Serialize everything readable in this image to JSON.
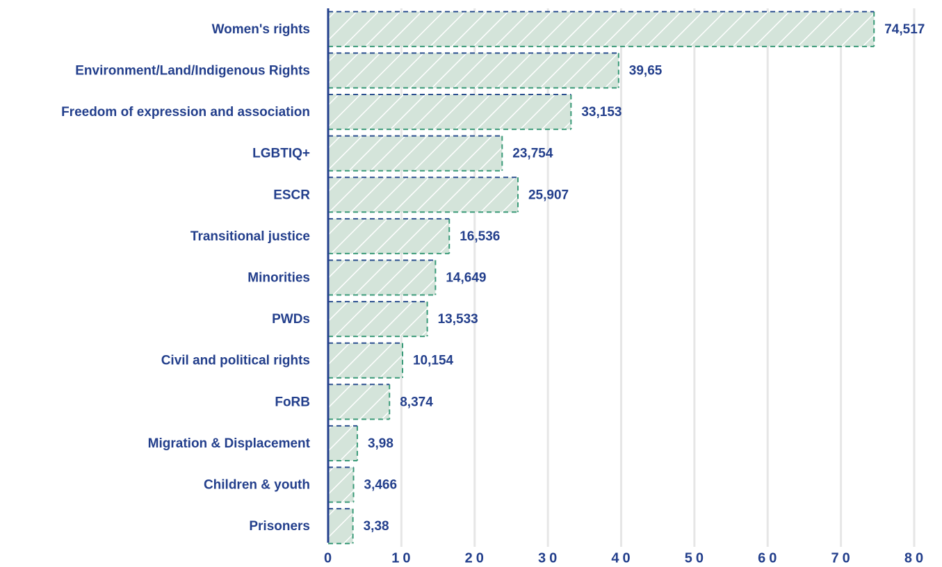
{
  "chart_data": {
    "type": "bar",
    "orientation": "horizontal",
    "categories": [
      "Women's rights",
      "Environment/Land/Indigenous Rights",
      "Freedom of expression and association",
      "LGBTIQ+",
      "ESCR",
      "Transitional justice",
      "Minorities",
      "PWDs",
      "Civil and political rights",
      "FoRB",
      "Migration & Displacement",
      "Children & youth",
      "Prisoners"
    ],
    "values": [
      74.517,
      39.65,
      33.153,
      23.754,
      25.907,
      16.536,
      14.649,
      13.533,
      10.154,
      8.374,
      3.98,
      3.466,
      3.38
    ],
    "value_labels": [
      "74,517",
      "39,65",
      "33,153",
      "23,754",
      "25,907",
      "16,536",
      "14,649",
      "13,533",
      "10,154",
      "8,374",
      "3,98",
      "3,466",
      "3,38"
    ],
    "color": "#d4e4da",
    "xlim": [
      0,
      80
    ],
    "xticks": [
      0,
      10,
      20,
      30,
      40,
      50,
      60,
      70,
      80
    ],
    "grid": true
  }
}
